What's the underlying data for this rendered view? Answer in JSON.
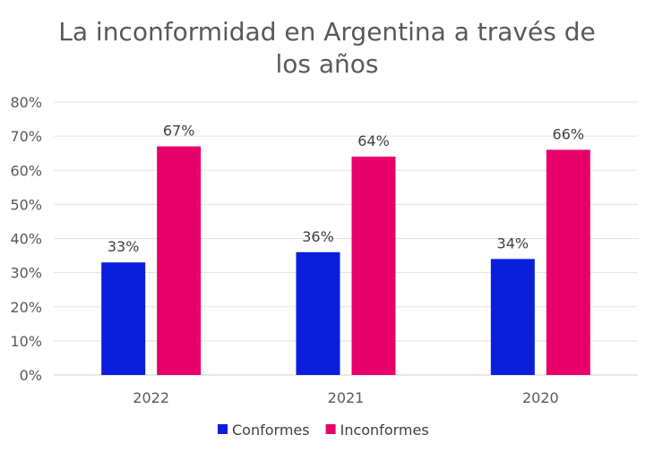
{
  "chart_data": {
    "type": "bar",
    "title": "La inconformidad en Argentina a través de los años",
    "categories": [
      "2022",
      "2021",
      "2020"
    ],
    "series": [
      {
        "name": "Conformes",
        "values": [
          33,
          36,
          34
        ],
        "labels": [
          "33%",
          "36%",
          "34%"
        ],
        "color": "#0A1EDB"
      },
      {
        "name": "Inconformes",
        "values": [
          67,
          64,
          66
        ],
        "labels": [
          "67%",
          "64%",
          "66%"
        ],
        "color": "#E8006B"
      }
    ],
    "ylim": [
      0,
      80
    ],
    "yticks": [
      "0%",
      "10%",
      "20%",
      "30%",
      "40%",
      "50%",
      "60%",
      "70%",
      "80%"
    ],
    "grid": true,
    "legend": "bottom"
  }
}
